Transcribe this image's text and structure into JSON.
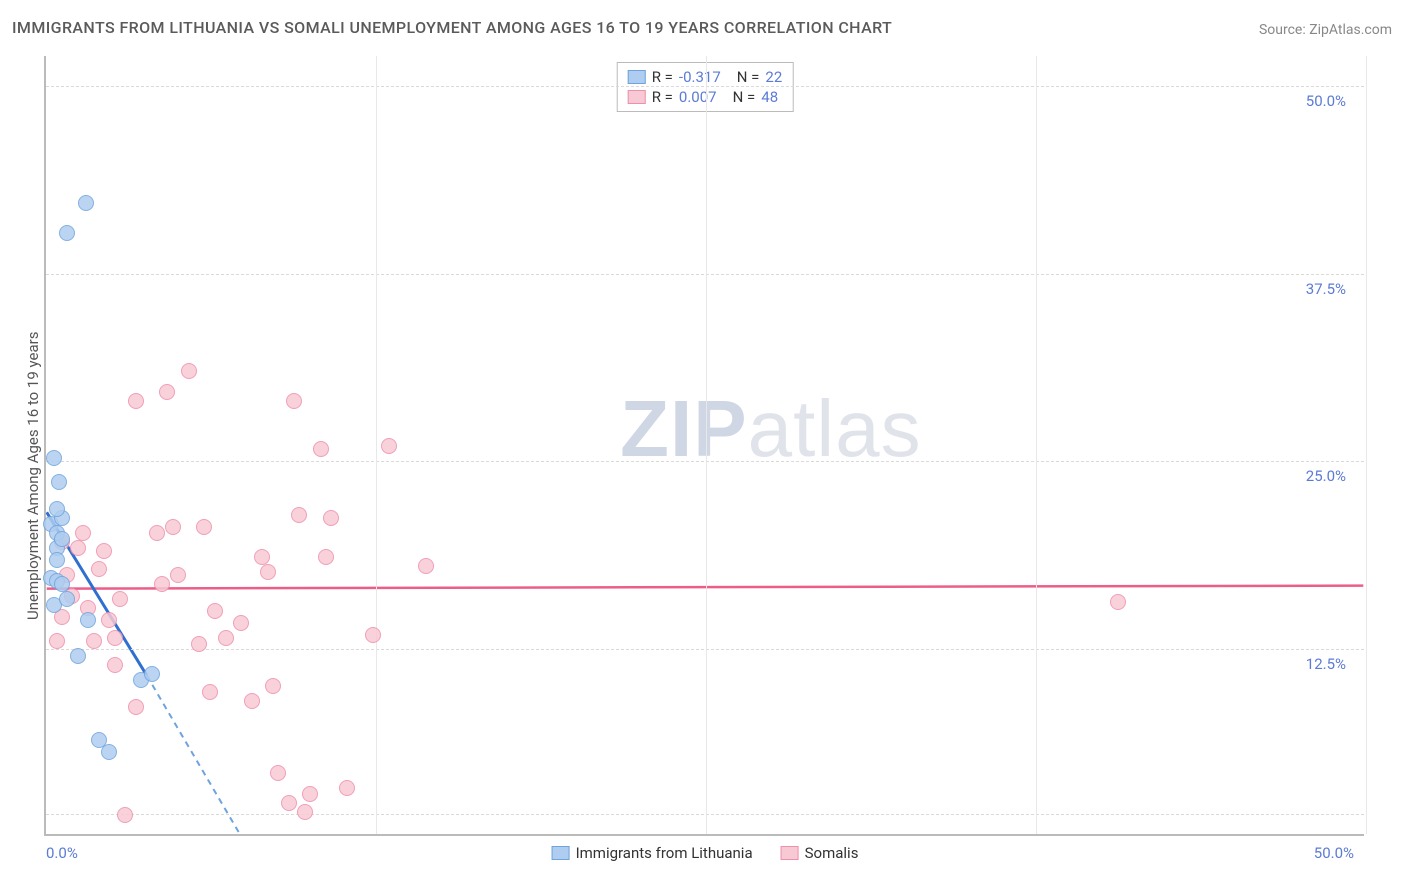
{
  "title": "IMMIGRANTS FROM LITHUANIA VS SOMALI UNEMPLOYMENT AMONG AGES 16 TO 19 YEARS CORRELATION CHART",
  "source_label": "Source: ",
  "source_value": "ZipAtlas.com",
  "y_axis_label": "Unemployment Among Ages 16 to 19 years",
  "watermark": {
    "part1": "ZIP",
    "part2": "atlas"
  },
  "chart": {
    "type": "scatter",
    "background_color": "#ffffff",
    "grid_color": "#d9d9d9",
    "axis_color": "#bbbbbb",
    "tick_label_color": "#5b7bd5",
    "xlim": [
      0,
      50
    ],
    "ylim": [
      0,
      52
    ],
    "x_ticks": [
      0,
      50
    ],
    "x_tick_labels": [
      "0.0%",
      "50.0%"
    ],
    "y_ticks": [
      12.5,
      25,
      37.5,
      50
    ],
    "y_tick_labels": [
      "12.5%",
      "25.0%",
      "37.5%",
      "50.0%"
    ],
    "h_gridlines_at": [
      1.5,
      12.5,
      25,
      37.5,
      50
    ],
    "v_gridlines_at": [
      12.5,
      25,
      37.5,
      50
    ],
    "marker_radius": 8,
    "marker_stroke_width": 1.5,
    "series": [
      {
        "name": "Immigrants from Lithuania",
        "fill": "#aecdf0",
        "stroke": "#6fa3dd",
        "trend_color": "#2f6fd0",
        "trend_dash_color": "#6fa3dd",
        "r_value": "-0.317",
        "n_value": "22",
        "trend": {
          "x1": 0,
          "y1": 21.5,
          "x2": 3.8,
          "y2": 10.6,
          "dash_x2": 7.6,
          "dash_y2": -0.8
        },
        "points": [
          {
            "x": 0.3,
            "y": 25.2
          },
          {
            "x": 0.5,
            "y": 23.6
          },
          {
            "x": 0.2,
            "y": 20.8
          },
          {
            "x": 0.4,
            "y": 20.2
          },
          {
            "x": 0.4,
            "y": 19.2
          },
          {
            "x": 0.6,
            "y": 19.8
          },
          {
            "x": 0.2,
            "y": 17.2
          },
          {
            "x": 0.4,
            "y": 17.0
          },
          {
            "x": 0.3,
            "y": 15.4
          },
          {
            "x": 1.5,
            "y": 42.2
          },
          {
            "x": 0.8,
            "y": 40.2
          },
          {
            "x": 0.4,
            "y": 18.4
          },
          {
            "x": 0.6,
            "y": 21.2
          },
          {
            "x": 0.4,
            "y": 21.8
          },
          {
            "x": 1.2,
            "y": 12.0
          },
          {
            "x": 2.0,
            "y": 6.4
          },
          {
            "x": 2.4,
            "y": 5.6
          },
          {
            "x": 3.6,
            "y": 10.4
          },
          {
            "x": 4.0,
            "y": 10.8
          },
          {
            "x": 1.6,
            "y": 14.4
          },
          {
            "x": 0.8,
            "y": 15.8
          },
          {
            "x": 0.6,
            "y": 16.8
          }
        ]
      },
      {
        "name": "Somalis",
        "fill": "#f7c9d4",
        "stroke": "#ef8fab",
        "trend_color": "#ec5e87",
        "r_value": "0.007",
        "n_value": "48",
        "trend": {
          "x1": 0,
          "y1": 16.4,
          "x2": 50,
          "y2": 16.6
        },
        "points": [
          {
            "x": 0.4,
            "y": 13.0
          },
          {
            "x": 0.6,
            "y": 14.6
          },
          {
            "x": 1.2,
            "y": 19.2
          },
          {
            "x": 1.4,
            "y": 20.2
          },
          {
            "x": 2.0,
            "y": 17.8
          },
          {
            "x": 2.4,
            "y": 14.4
          },
          {
            "x": 2.6,
            "y": 13.2
          },
          {
            "x": 3.4,
            "y": 29.0
          },
          {
            "x": 4.6,
            "y": 29.6
          },
          {
            "x": 3.4,
            "y": 8.6
          },
          {
            "x": 4.2,
            "y": 20.2
          },
          {
            "x": 4.8,
            "y": 20.6
          },
          {
            "x": 5.4,
            "y": 31.0
          },
          {
            "x": 6.0,
            "y": 20.6
          },
          {
            "x": 6.4,
            "y": 15.0
          },
          {
            "x": 6.8,
            "y": 13.2
          },
          {
            "x": 7.4,
            "y": 14.2
          },
          {
            "x": 8.2,
            "y": 18.6
          },
          {
            "x": 8.4,
            "y": 17.6
          },
          {
            "x": 8.6,
            "y": 10.0
          },
          {
            "x": 8.8,
            "y": 4.2
          },
          {
            "x": 9.2,
            "y": 2.2
          },
          {
            "x": 9.4,
            "y": 29.0
          },
          {
            "x": 9.6,
            "y": 21.4
          },
          {
            "x": 10.4,
            "y": 25.8
          },
          {
            "x": 10.6,
            "y": 18.6
          },
          {
            "x": 10.8,
            "y": 21.2
          },
          {
            "x": 9.8,
            "y": 1.6
          },
          {
            "x": 10.0,
            "y": 2.8
          },
          {
            "x": 3.0,
            "y": 1.4
          },
          {
            "x": 11.4,
            "y": 3.2
          },
          {
            "x": 12.4,
            "y": 13.4
          },
          {
            "x": 13.0,
            "y": 26.0
          },
          {
            "x": 14.4,
            "y": 18.0
          },
          {
            "x": 0.6,
            "y": 19.6
          },
          {
            "x": 1.0,
            "y": 16.0
          },
          {
            "x": 0.8,
            "y": 17.4
          },
          {
            "x": 1.6,
            "y": 15.2
          },
          {
            "x": 2.2,
            "y": 19.0
          },
          {
            "x": 2.8,
            "y": 15.8
          },
          {
            "x": 1.8,
            "y": 13.0
          },
          {
            "x": 2.6,
            "y": 11.4
          },
          {
            "x": 5.8,
            "y": 12.8
          },
          {
            "x": 6.2,
            "y": 9.6
          },
          {
            "x": 7.8,
            "y": 9.0
          },
          {
            "x": 40.6,
            "y": 15.6
          },
          {
            "x": 4.4,
            "y": 16.8
          },
          {
            "x": 5.0,
            "y": 17.4
          }
        ]
      }
    ],
    "legend_labels": {
      "r": "R = ",
      "n": "N = "
    }
  }
}
